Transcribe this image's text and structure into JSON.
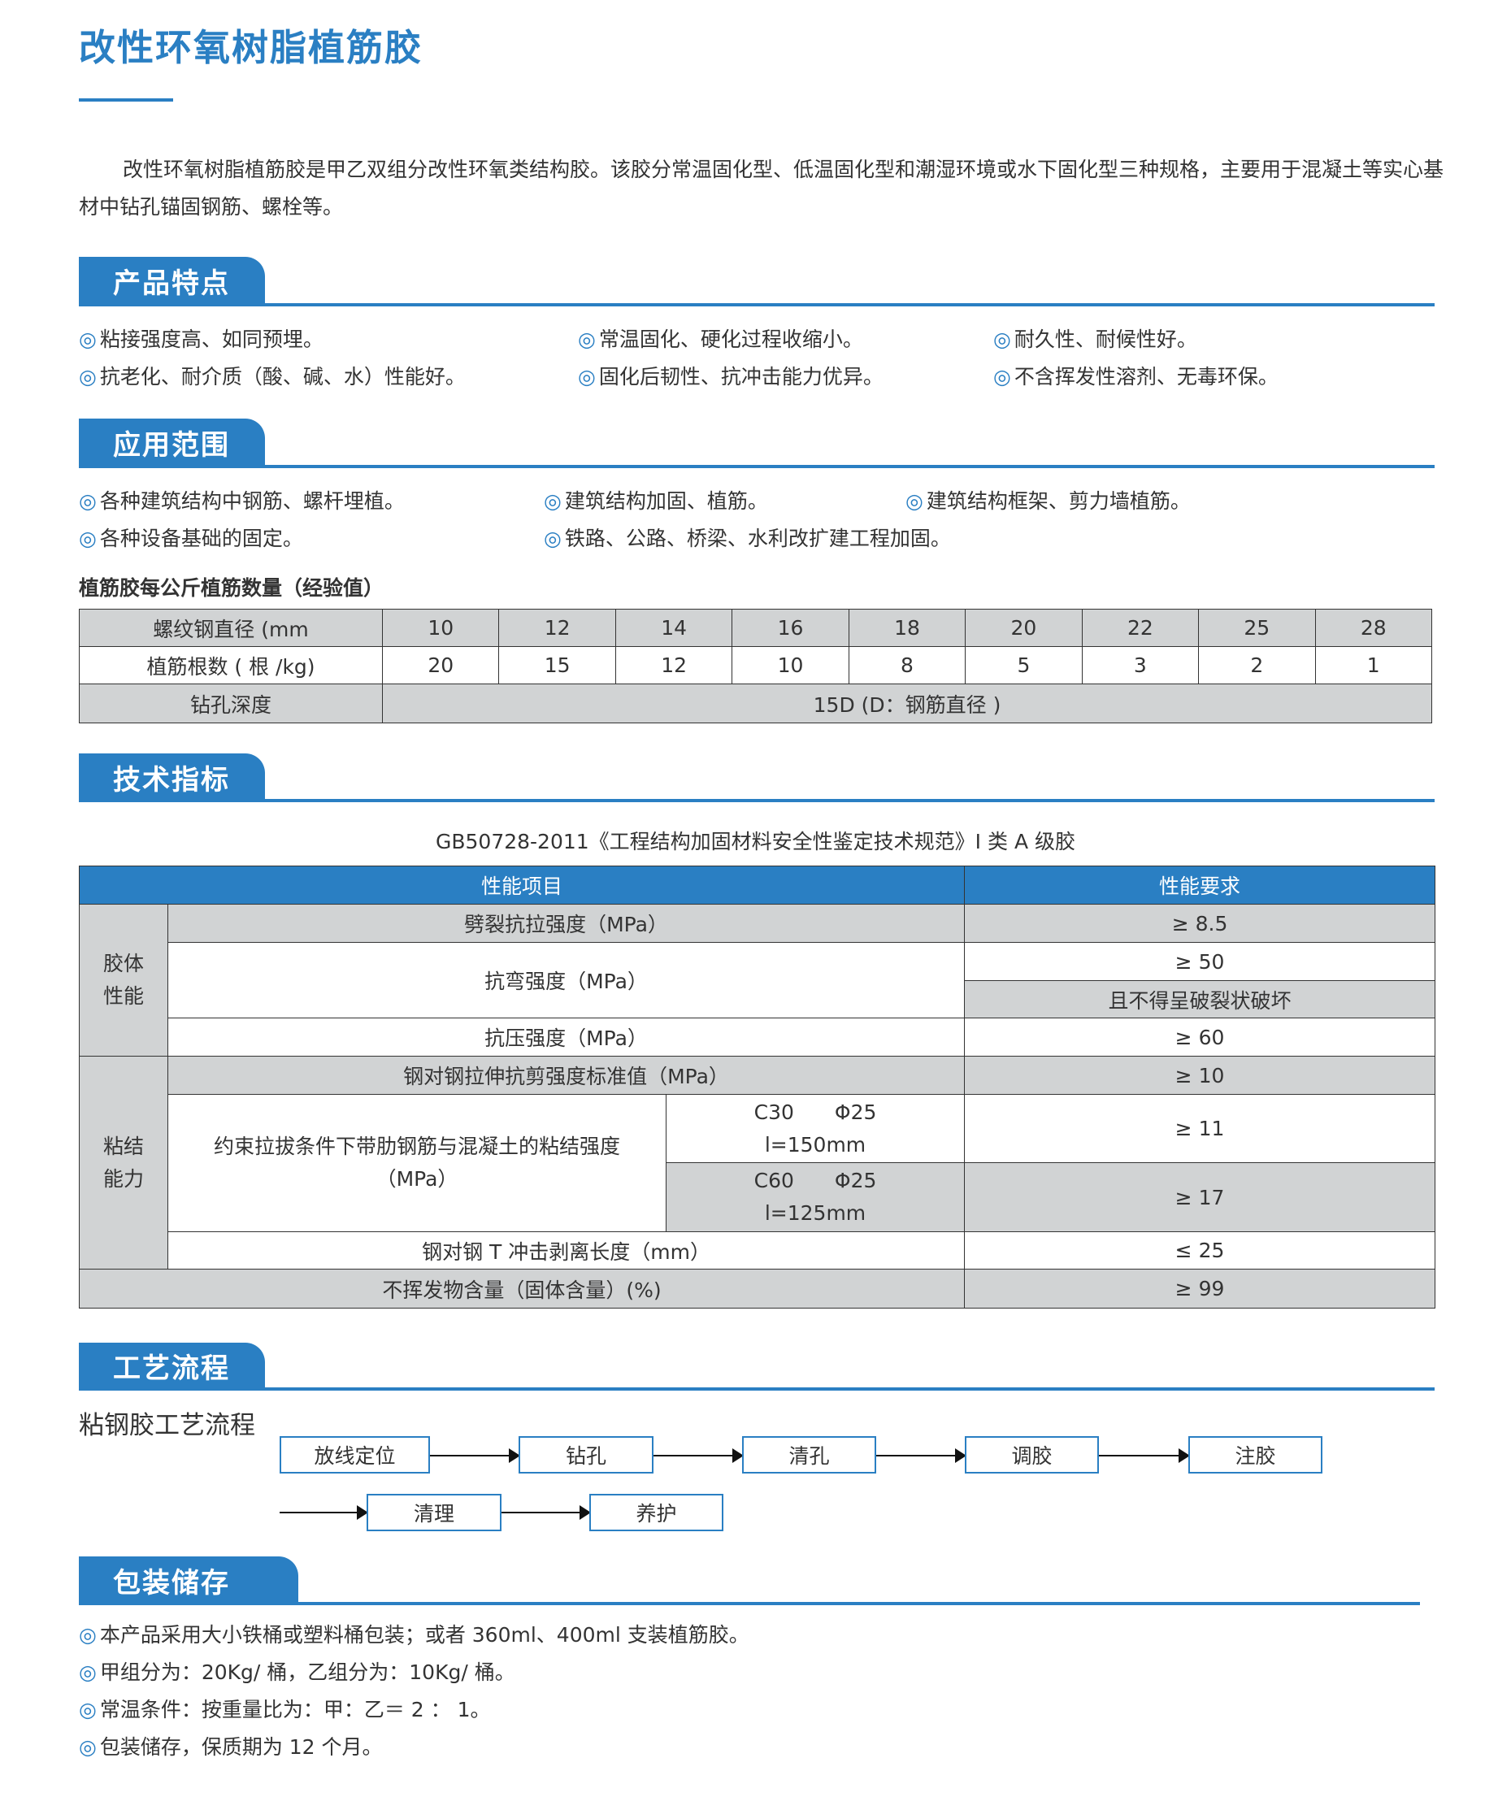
{
  "title": "改性环氧树脂植筋胶",
  "intro": "改性环氧树脂植筋胶是甲乙双组分改性环氧类结构胶。该胶分常温固化型、低温固化型和潮湿环境或水下固化型三种规格，主要用于混凝土等实心基材中钻孔锚固钢筋、螺栓等。",
  "bullet": "◎",
  "colors": {
    "accent": "#2a7fc3",
    "table_gray": "#d1d3d4"
  },
  "features": {
    "heading": "产品特点",
    "items": [
      "粘接强度高、如同预埋。",
      "常温固化、硬化过程收缩小。",
      "耐久性、耐候性好。",
      "抗老化、耐介质（酸、碱、水）性能好。",
      "固化后韧性、抗冲击能力优异。",
      "不含挥发性溶剂、无毒环保。"
    ]
  },
  "applications": {
    "heading": "应用范围",
    "items": [
      "各种建筑结构中钢筋、螺杆埋植。",
      "建筑结构加固、植筋。",
      "建筑结构框架、剪力墙植筋。",
      "各种设备基础的固定。",
      "铁路、公路、桥梁、水利改扩建工程加固。"
    ]
  },
  "rebar_table": {
    "caption": "植筋胶每公斤植筋数量（经验值）",
    "row_labels": [
      "螺纹钢直径 (mm",
      "植筋根数 ( 根 /kg)",
      "钻孔深度"
    ],
    "diameters": [
      "10",
      "12",
      "14",
      "16",
      "18",
      "20",
      "22",
      "25",
      "28"
    ],
    "counts": [
      "20",
      "15",
      "12",
      "10",
      "8",
      "5",
      "3",
      "2",
      "1"
    ],
    "depth": "15D (D：钢筋直径 )"
  },
  "tech": {
    "heading": "技术指标",
    "standard": "GB50728-2011《工程结构加固材料安全性鉴定技术规范》I 类 A 级胶",
    "headers": [
      "性能项目",
      "性能要求"
    ],
    "group1": "胶体\n性能",
    "group2": "粘结\n能力",
    "rows": {
      "split": "劈裂抗拉强度（MPa）",
      "split_v": "≥ 8.5",
      "bend": "抗弯强度（MPa）",
      "bend_v": "≥ 50",
      "bend_v2": "且不得呈破裂状破坏",
      "comp": "抗压强度（MPa）",
      "comp_v": "≥ 60",
      "shear": "钢对钢拉伸抗剪强度标准值（MPa）",
      "shear_v": "≥ 10",
      "bond": "约束拉拔条件下带肋钢筋与混凝土的粘结强度（MPa）",
      "c30": "C30　　Φ25\nl=150mm",
      "c30_v": "≥ 11",
      "c60": "C60　　Φ25\nl=125mm",
      "c60_v": "≥ 17",
      "peel": "钢对钢 T 冲击剥离长度（mm）",
      "peel_v": "≤ 25",
      "solid": "不挥发物含量（固体含量）(%)",
      "solid_v": "≥ 99"
    }
  },
  "process": {
    "heading": "工艺流程",
    "subtitle": "粘钢胶工艺流程",
    "steps": [
      "放线定位",
      "钻孔",
      "清孔",
      "调胶",
      "注胶",
      "清理",
      "养护"
    ]
  },
  "packaging": {
    "heading": "包装储存",
    "items": [
      "本产品采用大小铁桶或塑料桶包装；或者 360ml、400ml 支装植筋胶。",
      "甲组分为：20Kg/ 桶，乙组分为：10Kg/ 桶。",
      "常温条件：按重量比为：甲：乙＝ 2 ： 1。",
      "包装储存，保质期为 12 个月。"
    ]
  }
}
